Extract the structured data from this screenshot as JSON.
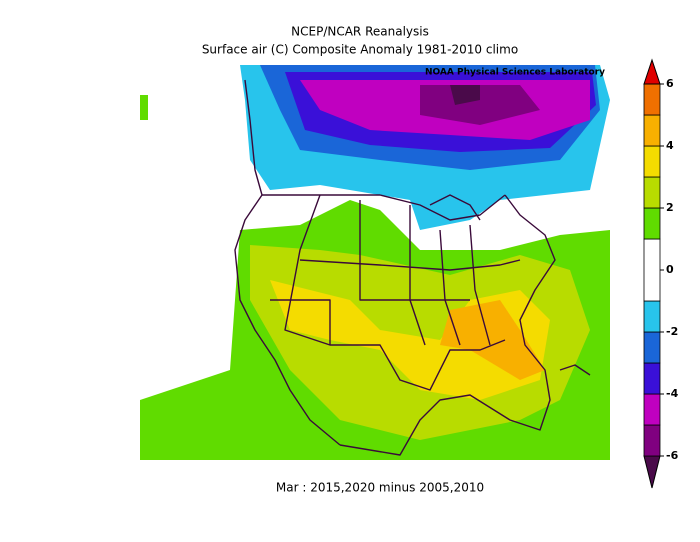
{
  "header": {
    "title": "NCEP/NCAR Reanalysis",
    "subtitle": "Surface air (C) Composite Anomaly 1981-2010 climo",
    "credit": "NOAA Physical Sciences Laboratory"
  },
  "footer": "Mar : 2015,2020 minus 2005,2010",
  "colorbar": {
    "ticks": [
      6,
      4,
      2,
      0,
      -2,
      -4,
      -6
    ],
    "levels": [
      -6,
      -5,
      -4,
      -3,
      -2,
      -1,
      1,
      2,
      3,
      4,
      5,
      6
    ],
    "colors": [
      "#4a0a4a",
      "#800080",
      "#c000c0",
      "#3a10d8",
      "#1a66d8",
      "#28c4ec",
      "#ffffff",
      "#60dc00",
      "#b8dc00",
      "#f4dc00",
      "#f8b000",
      "#f07000",
      "#e00000"
    ]
  }
}
